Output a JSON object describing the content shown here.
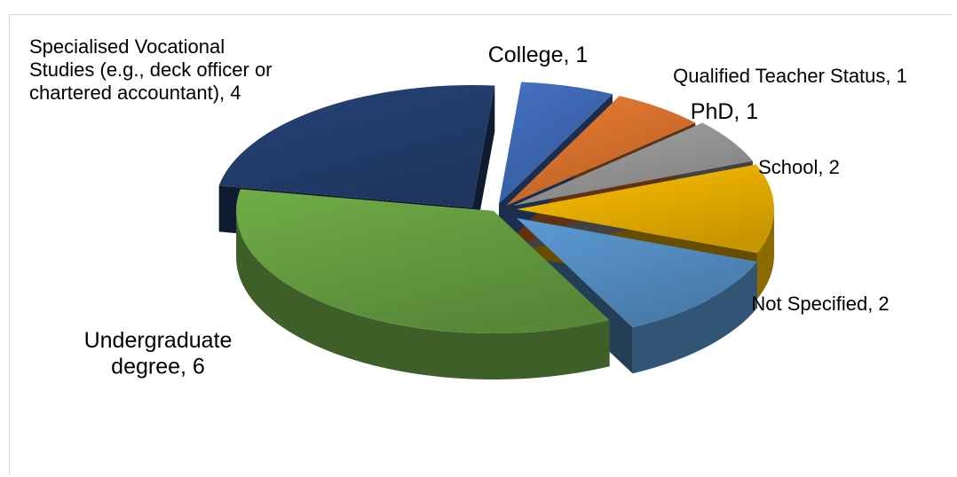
{
  "chart_data": {
    "type": "pie",
    "title": "",
    "three_d": true,
    "exploded": true,
    "categories": [
      "College",
      "Qualified Teacher Status",
      "PhD",
      "School",
      "Not Specified",
      "Undergraduate degree",
      "Specialised Vocational Studies (e.g., deck officer or chartered accountant)"
    ],
    "values": [
      1,
      1,
      1,
      2,
      2,
      6,
      4
    ],
    "colors": [
      "#4472C4",
      "#ED7D31",
      "#A5A5A5",
      "#FFC000",
      "#5B9BD5",
      "#70AD47",
      "#264478"
    ],
    "labels": [
      [
        "College, 1"
      ],
      [
        "Qualified Teacher Status, 1"
      ],
      [
        "PhD, 1"
      ],
      [
        "School, 2"
      ],
      [
        "Not Specified, 2"
      ],
      [
        "Undergraduate",
        "degree, 6"
      ],
      [
        "Specialised Vocational",
        "Studies (e.g., deck officer or",
        "chartered accountant), 4"
      ]
    ],
    "legend": "none"
  }
}
